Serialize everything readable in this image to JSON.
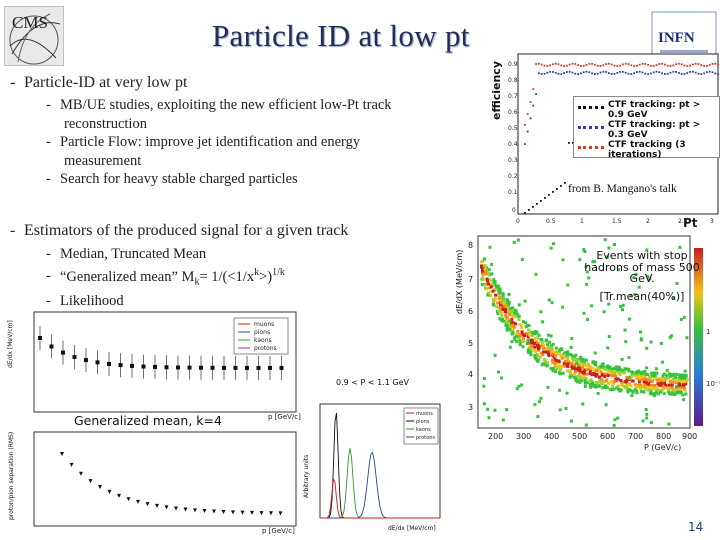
{
  "slide": {
    "title": "Particle ID at low pt",
    "page_number": "14"
  },
  "bullets": {
    "b1": "Particle-ID at very low pt",
    "b1_sub": [
      "MB/UE studies, exploiting the new efficient low-Pt track",
      "reconstruction",
      "Particle Flow: improve jet identification and energy",
      "measurement",
      "Search for heavy stable charged particles"
    ],
    "b2": "Estimators of the produced signal for a given track",
    "b2_sub": [
      "Median, Truncated Mean",
      "“Generalized mean” M",
      "Likelihood"
    ],
    "gm_sub_k": "k",
    "gm_formula": "= 1/(<1/x",
    "gm_sup_k": "k",
    "gm_close": ">)",
    "gm_exp": "1/k"
  },
  "annotations": {
    "from_credit": "from B. Mangano's talk",
    "heavy_line1": "Events with stop",
    "heavy_line2": "hadrons of mass 500",
    "heavy_line3": "GeV.",
    "heavy_line4": "[Tr.mean(40%)]",
    "gen_mean": "Generalized mean, k=4"
  },
  "logos": {
    "infn_text": "INFN"
  },
  "plots": {
    "efficiency": {
      "ylabel": "efficiency",
      "xlabel": "Pt",
      "yticks": [
        "0.9",
        "0.8",
        "0.7",
        "0.6",
        "0.5",
        "0.4",
        "0.3",
        "0.2",
        "0.1",
        "0"
      ],
      "xticks": [
        "0",
        "0.5",
        "1",
        "1.5",
        "2",
        "2.5",
        "3"
      ],
      "legend": [
        {
          "label": "CTF tracking: pt > 0.9 GeV",
          "color": "#111111"
        },
        {
          "label": "CTF tracking: pt > 0.3 GeV",
          "color": "#2b3fb0"
        },
        {
          "label": "CTF tracking (3 iterations)",
          "color": "#d63a2a"
        }
      ]
    },
    "dedx_heavy": {
      "ylabel": "dE/dX (MeV/cm)",
      "xlabel": "P (GeV/c)",
      "yticks": [
        "8",
        "7",
        "6",
        "5",
        "4",
        "3"
      ],
      "xticks": [
        "200",
        "300",
        "400",
        "500",
        "600",
        "700",
        "800",
        "900"
      ],
      "zticks": [
        "1",
        "10⁻¹"
      ]
    },
    "dedx_p": {
      "ylabel": "dE/dx [MeV/cm]",
      "xlabel": "p [GeV/c]",
      "legend": [
        "muons",
        "pions",
        "kaons",
        "protons"
      ]
    },
    "separation": {
      "ylabel": "proton/pion separation (RMS)",
      "xlabel": "p [GeV/c]"
    },
    "histo": {
      "title": "0.9 < P < 1.1 GeV",
      "ylabel": "Arbitrary units",
      "xlabel": "dE/dx [MeV/cm]",
      "legend": [
        "muons",
        "pions",
        "kaons",
        "protons"
      ]
    }
  }
}
